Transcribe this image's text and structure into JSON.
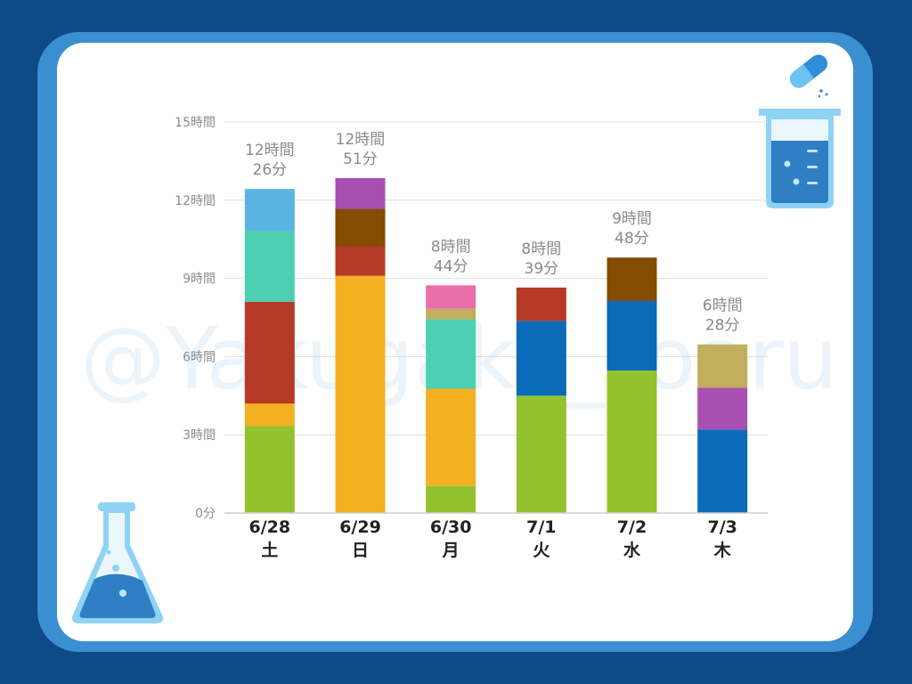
{
  "watermark": "@Yakugaku_toaru",
  "colors": {
    "green": "#93c22f",
    "orange": "#f3b020",
    "red": "#b73a26",
    "teal": "#4ecfb4",
    "skyblue": "#5ab4e3",
    "purple": "#a84fb1",
    "brown": "#834c00",
    "pink": "#ea6ea8",
    "tan": "#c2ae5c",
    "blue": "#0a6bb9"
  },
  "icons": [
    "capsule-icon",
    "beaker-icon",
    "flask-icon"
  ],
  "chart_data": {
    "type": "bar",
    "stacked": true,
    "unit": "minutes",
    "ylim": [
      0,
      900
    ],
    "yticks": [
      {
        "value": 0,
        "label": "0分"
      },
      {
        "value": 180,
        "label": "3時間"
      },
      {
        "value": 360,
        "label": "6時間"
      },
      {
        "value": 540,
        "label": "9時間"
      },
      {
        "value": 720,
        "label": "12時間"
      },
      {
        "value": 900,
        "label": "15時間"
      }
    ],
    "grid": true,
    "categories": [
      {
        "date": "6/28",
        "day": "土"
      },
      {
        "date": "6/29",
        "day": "日"
      },
      {
        "date": "6/30",
        "day": "月"
      },
      {
        "date": "7/1",
        "day": "火"
      },
      {
        "date": "7/2",
        "day": "水"
      },
      {
        "date": "7/3",
        "day": "木"
      }
    ],
    "totals": [
      {
        "line1": "12時間",
        "line2": "26分",
        "value": 746
      },
      {
        "line1": "12時間",
        "line2": "51分",
        "value": 771
      },
      {
        "line1": "8時間",
        "line2": "44分",
        "value": 524
      },
      {
        "line1": "8時間",
        "line2": "39分",
        "value": 519
      },
      {
        "line1": "9時間",
        "line2": "48分",
        "value": 588
      },
      {
        "line1": "6時間",
        "line2": "28分",
        "value": 388
      }
    ],
    "segments": [
      [
        {
          "color": "green",
          "value": 200
        },
        {
          "color": "orange",
          "value": 52
        },
        {
          "color": "red",
          "value": 234
        },
        {
          "color": "teal",
          "value": 164
        },
        {
          "color": "skyblue",
          "value": 96
        }
      ],
      [
        {
          "color": "orange",
          "value": 546
        },
        {
          "color": "red",
          "value": 68
        },
        {
          "color": "brown",
          "value": 86
        },
        {
          "color": "purple",
          "value": 71
        }
      ],
      [
        {
          "color": "green",
          "value": 62
        },
        {
          "color": "orange",
          "value": 224
        },
        {
          "color": "teal",
          "value": 160
        },
        {
          "color": "tan",
          "value": 24
        },
        {
          "color": "pink",
          "value": 54
        }
      ],
      [
        {
          "color": "green",
          "value": 270
        },
        {
          "color": "blue",
          "value": 172
        },
        {
          "color": "red",
          "value": 77
        }
      ],
      [
        {
          "color": "green",
          "value": 328
        },
        {
          "color": "blue",
          "value": 160
        },
        {
          "color": "brown",
          "value": 100
        }
      ],
      [
        {
          "color": "blue",
          "value": 192
        },
        {
          "color": "purple",
          "value": 96
        },
        {
          "color": "tan",
          "value": 100
        }
      ]
    ]
  }
}
